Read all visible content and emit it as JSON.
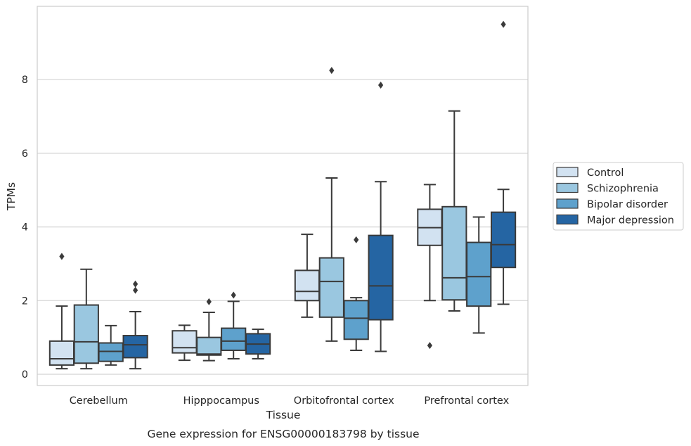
{
  "chart_data": {
    "type": "box",
    "caption": "Gene expression for ENSG00000183798 by tissue",
    "xlabel": "Tissue",
    "ylabel": "TPMs",
    "ylim": [
      -0.3,
      9.9
    ],
    "yticks": [
      0,
      2,
      4,
      6,
      8
    ],
    "grid": "horizontal",
    "legend_placement": "right",
    "categories": [
      "Cerebellum",
      "Hipppocampus",
      "Orbitofrontal cortex",
      "Prefrontal cortex"
    ],
    "series": [
      {
        "name": "Control",
        "color": "#d2e2f1",
        "boxes": [
          {
            "whislo": 0.15,
            "q1": 0.25,
            "med": 0.42,
            "q3": 0.9,
            "whishi": 1.85,
            "fliers": [
              3.2
            ]
          },
          {
            "whislo": 0.38,
            "q1": 0.58,
            "med": 0.72,
            "q3": 1.18,
            "whishi": 1.33,
            "fliers": []
          },
          {
            "whislo": 1.55,
            "q1": 2.0,
            "med": 2.25,
            "q3": 2.82,
            "whishi": 3.8,
            "fliers": []
          },
          {
            "whislo": 2.0,
            "q1": 3.5,
            "med": 3.98,
            "q3": 4.48,
            "whishi": 5.15,
            "fliers": [
              0.78
            ]
          }
        ]
      },
      {
        "name": "Schizophrenia",
        "color": "#9ac7e0",
        "boxes": [
          {
            "whislo": 0.15,
            "q1": 0.3,
            "med": 0.88,
            "q3": 1.88,
            "whishi": 2.85,
            "fliers": []
          },
          {
            "whislo": 0.37,
            "q1": 0.52,
            "med": 0.55,
            "q3": 1.0,
            "whishi": 1.68,
            "fliers": [
              1.97
            ]
          },
          {
            "whislo": 0.9,
            "q1": 1.55,
            "med": 2.52,
            "q3": 3.16,
            "whishi": 5.33,
            "fliers": [
              8.25
            ]
          },
          {
            "whislo": 1.72,
            "q1": 2.02,
            "med": 2.62,
            "q3": 4.55,
            "whishi": 7.15,
            "fliers": []
          }
        ]
      },
      {
        "name": "Bipolar disorder",
        "color": "#5ea1cc",
        "boxes": [
          {
            "whislo": 0.25,
            "q1": 0.35,
            "med": 0.62,
            "q3": 0.85,
            "whishi": 1.32,
            "fliers": []
          },
          {
            "whislo": 0.42,
            "q1": 0.65,
            "med": 0.9,
            "q3": 1.25,
            "whishi": 1.98,
            "fliers": [
              2.15
            ]
          },
          {
            "whislo": 0.65,
            "q1": 0.95,
            "med": 1.52,
            "q3": 2.0,
            "whishi": 2.08,
            "fliers": [
              3.65
            ]
          },
          {
            "whislo": 1.12,
            "q1": 1.85,
            "med": 2.65,
            "q3": 3.58,
            "whishi": 4.27,
            "fliers": []
          }
        ]
      },
      {
        "name": "Major depression",
        "color": "#2565a3",
        "boxes": [
          {
            "whislo": 0.15,
            "q1": 0.45,
            "med": 0.8,
            "q3": 1.05,
            "whishi": 1.7,
            "fliers": [
              2.28,
              2.45
            ]
          },
          {
            "whislo": 0.42,
            "q1": 0.55,
            "med": 0.82,
            "q3": 1.1,
            "whishi": 1.22,
            "fliers": []
          },
          {
            "whislo": 0.62,
            "q1": 1.48,
            "med": 2.4,
            "q3": 3.77,
            "whishi": 5.23,
            "fliers": [
              7.85
            ]
          },
          {
            "whislo": 1.9,
            "q1": 2.9,
            "med": 3.52,
            "q3": 4.4,
            "whishi": 5.02,
            "fliers": [
              9.5
            ]
          }
        ]
      }
    ]
  }
}
